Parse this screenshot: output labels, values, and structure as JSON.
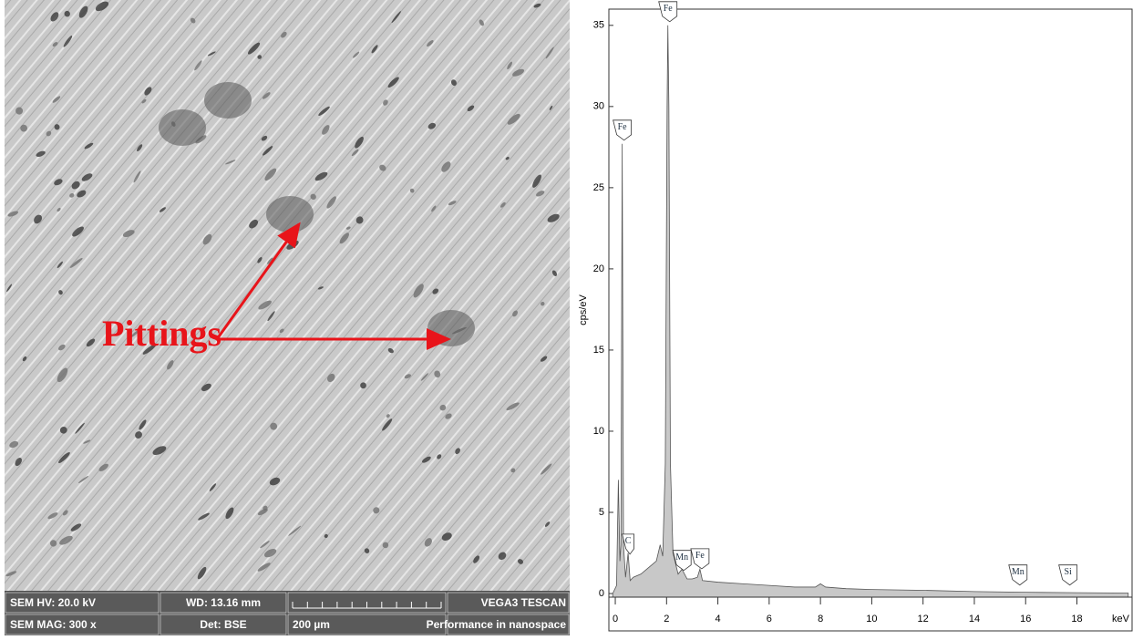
{
  "sem_image": {
    "annotation": "Pittings",
    "info_bar": [
      [
        "SEM HV: 20.0 kV",
        "WD: 13.16 mm",
        "",
        "VEGA3 TESCAN"
      ],
      [
        "SEM MAG: 300 x",
        "Det: BSE",
        "200 µm",
        "Performance in nanospace"
      ]
    ]
  },
  "chart_data": {
    "type": "area",
    "y_label": "cps/eV",
    "x_label": "keV",
    "color": "#c8c8c8",
    "x": [
      -0.1,
      0.05,
      0.12,
      0.18,
      0.22,
      0.27,
      0.32,
      0.4,
      0.5,
      0.58,
      0.7,
      1.0,
      1.3,
      1.6,
      1.75,
      1.85,
      1.95,
      2.02,
      2.05,
      2.09,
      2.15,
      2.25,
      2.45,
      2.6,
      2.8,
      3.0,
      3.2,
      3.3,
      3.4,
      4,
      5,
      6,
      7,
      7.8,
      8,
      8.2,
      9,
      10,
      12,
      14,
      16,
      18,
      20
    ],
    "values": [
      0,
      0.5,
      7,
      2,
      3,
      27.7,
      3,
      1,
      2.5,
      0.8,
      1,
      1.2,
      1.6,
      2,
      3,
      2.3,
      8,
      30,
      35,
      30,
      8,
      2.5,
      1.2,
      1.5,
      0.9,
      0.9,
      1.0,
      1.5,
      0.8,
      0.7,
      0.6,
      0.5,
      0.4,
      0.4,
      0.6,
      0.4,
      0.3,
      0.25,
      0.2,
      0.12,
      0.08,
      0.05,
      0.03
    ],
    "peak_labels": [
      {
        "text": "Fe",
        "x": 2.05,
        "y": 35
      },
      {
        "text": "Fe",
        "x": 0.27,
        "y": 27.7
      },
      {
        "text": "C",
        "x": 0.5,
        "y": 2.2
      },
      {
        "text": "Mn",
        "x": 2.6,
        "y": 1.2
      },
      {
        "text": "Fe",
        "x": 3.3,
        "y": 1.3
      },
      {
        "text": "Mn",
        "x": 15.7,
        "y": 0.3
      },
      {
        "text": "Si",
        "x": 17.65,
        "y": 0.3
      }
    ],
    "xlim": [
      -0.25,
      20.15
    ],
    "ylim": [
      -2.3,
      36
    ],
    "xticks": [
      0,
      2,
      4,
      6,
      8,
      10,
      12,
      14,
      16,
      18
    ],
    "yticks": [
      0,
      5,
      10,
      15,
      20,
      25,
      30,
      35
    ]
  }
}
